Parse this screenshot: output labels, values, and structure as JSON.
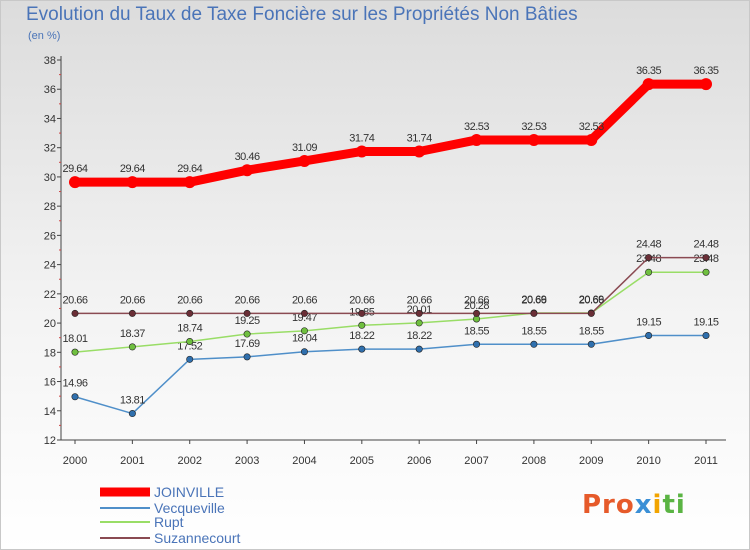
{
  "title": "Evolution du Taux de Taxe Foncière sur les Propriétés Non Bâties",
  "subtitle": "(en %)",
  "logo": [
    "Pro",
    "x",
    "i",
    "ti"
  ],
  "chart_data": {
    "type": "line",
    "title": "Evolution du Taux de Taxe Foncière sur les Propriétés Non Bâties",
    "ylabel": "(en %)",
    "xlabel": "",
    "ylim": [
      12,
      38
    ],
    "yticks": [
      "12",
      "14",
      "16",
      "18",
      "20",
      "22",
      "24",
      "26",
      "28",
      "30",
      "32",
      "34",
      "36",
      "38"
    ],
    "categories": [
      "2000",
      "2001",
      "2002",
      "2003",
      "2004",
      "2005",
      "2006",
      "2007",
      "2008",
      "2009",
      "2010",
      "2011"
    ],
    "series": [
      {
        "name": "JOINVILLE",
        "color": "#ff0000",
        "values": [
          29.64,
          29.64,
          29.64,
          30.46,
          31.09,
          31.74,
          31.74,
          32.53,
          32.53,
          32.53,
          36.35,
          36.35
        ],
        "labels": [
          "29.64",
          "29.64",
          "29.64",
          "30.46",
          "31.09",
          "31.74",
          "31.74",
          "32.53",
          "32.53",
          "32.53",
          "36.35",
          "36.35"
        ]
      },
      {
        "name": "Vecqueville",
        "color": "#4f8fc9",
        "values": [
          14.96,
          13.81,
          17.52,
          17.69,
          18.04,
          18.22,
          18.22,
          18.55,
          18.55,
          18.55,
          19.15,
          19.15
        ],
        "labels": [
          "14.96",
          "13.81",
          "17.52",
          "17.69",
          "18.04",
          "18.22",
          "18.22",
          "18.55",
          "18.55",
          "18.55",
          "19.15",
          "19.15"
        ]
      },
      {
        "name": "Rupt",
        "color": "#99dd66",
        "values": [
          18.01,
          18.37,
          18.74,
          19.25,
          19.47,
          19.85,
          20.01,
          20.28,
          20.69,
          20.69,
          23.48,
          23.48
        ],
        "labels": [
          "18.01",
          "18.37",
          "18.74",
          "19.25",
          "19.47",
          "19.85",
          "20.01",
          "20.28",
          "20.69",
          "20.69",
          "23.48",
          "23.48"
        ]
      },
      {
        "name": "Suzannecourt",
        "color": "#8a4a52",
        "values": [
          20.66,
          20.66,
          20.66,
          20.66,
          20.66,
          20.66,
          20.66,
          20.66,
          20.66,
          20.66,
          24.48,
          24.48
        ],
        "labels": [
          "20.66",
          "20.66",
          "20.66",
          "20.66",
          "20.66",
          "20.66",
          "20.66",
          "20.66",
          "20.66",
          "20.66",
          "24.48",
          "24.48"
        ]
      }
    ],
    "legend": "bottom-left",
    "grid": false
  }
}
